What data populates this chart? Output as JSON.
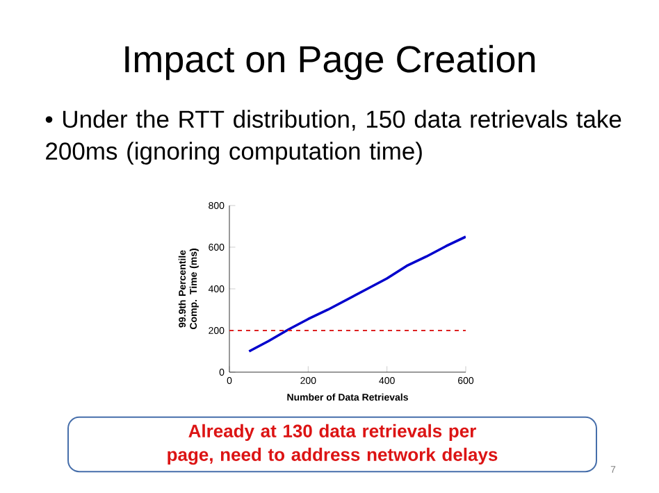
{
  "chart_data": {
    "type": "line",
    "title": "Impact on Page Creation",
    "subtitle": "•  Under the RTT distribution, 150 data retrievals take 200ms (ignoring computation time)",
    "xlabel": "Number of Data Retrievals",
    "ylabel": "99.9th Percentile Comp. Time (ms)",
    "x": [
      50,
      100,
      150,
      200,
      250,
      300,
      350,
      400,
      450,
      500,
      550,
      600
    ],
    "series": [
      {
        "color": "#0000cc",
        "values": [
          100,
          150,
          205,
          255,
          300,
          350,
          400,
          450,
          510,
          555,
          605,
          650
        ]
      }
    ],
    "xlim": [
      0,
      600
    ],
    "ylim": [
      0,
      800
    ],
    "xticks": [
      0,
      200,
      400,
      600
    ],
    "yticks": [
      0,
      200,
      400,
      600,
      800
    ],
    "ref_lines": [
      {
        "axis": "y",
        "value": 200,
        "color": "#dd2222",
        "line_style": "dashed"
      }
    ],
    "annotations": [
      "Already at 130 data retrievals per page, need to address network delays",
      "7"
    ]
  }
}
